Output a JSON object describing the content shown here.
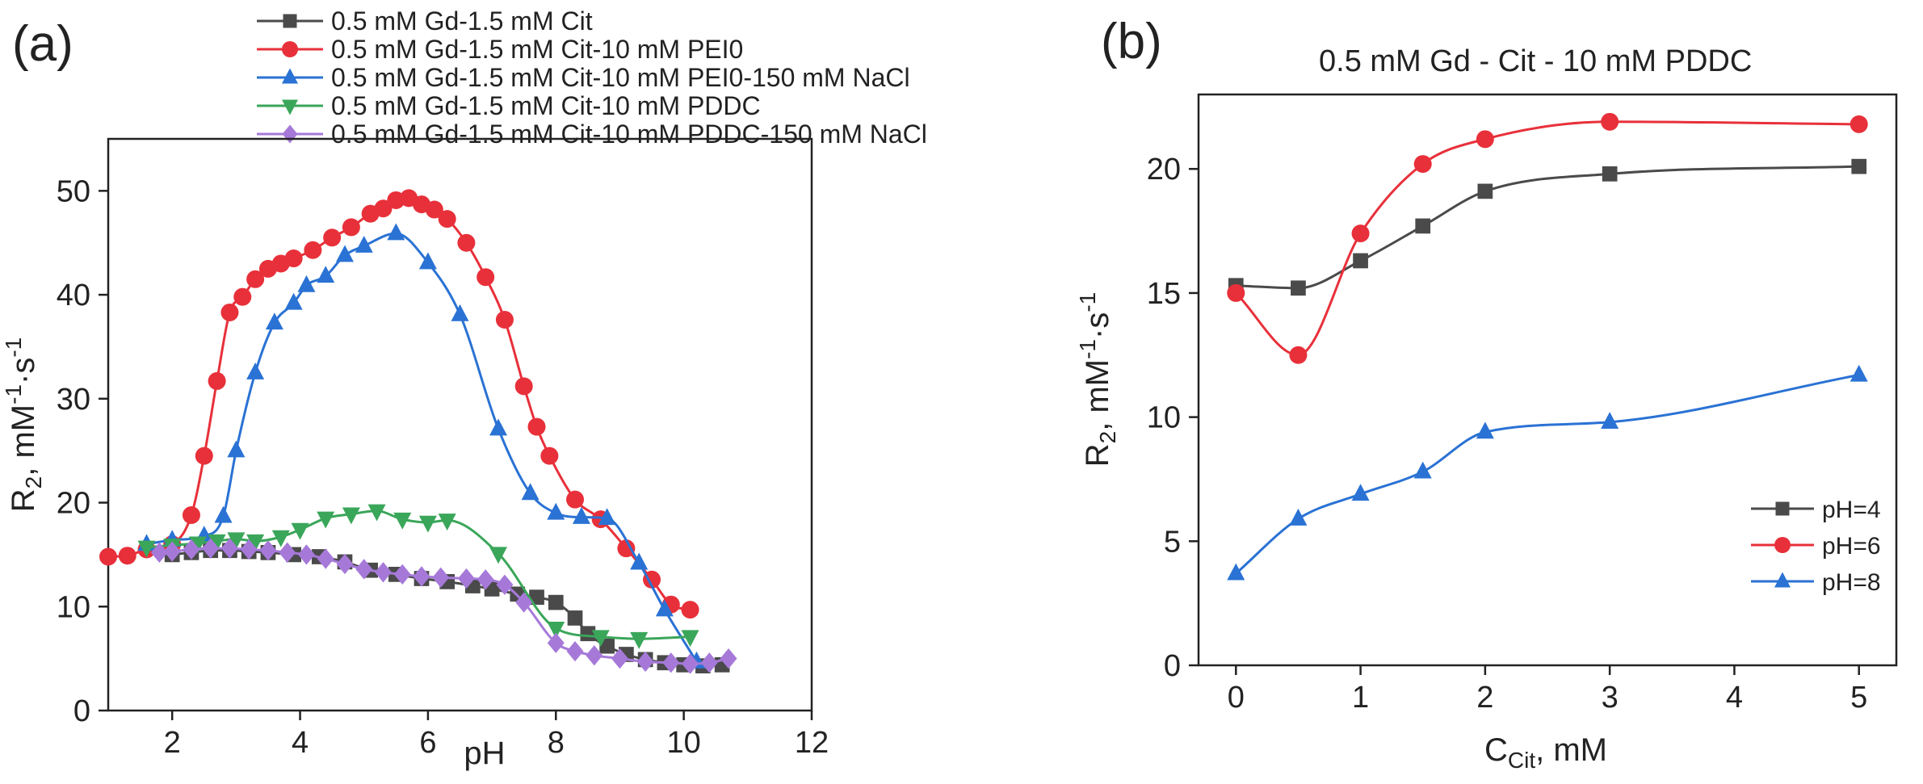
{
  "chart_data": [
    {
      "type": "line",
      "panel_label": "(a)",
      "title": "",
      "xlabel": "pH",
      "ylabel": "R",
      "ylabel_sub": "2",
      "ylabel_unit": ", mM",
      "ylabel_sup1": "-1",
      "ylabel_mid": "·s",
      "ylabel_sup2": "-1",
      "xlim": [
        1,
        12
      ],
      "ylim": [
        0,
        55
      ],
      "x_ticks": [
        "2",
        "4",
        "6",
        "8",
        "10",
        "12"
      ],
      "y_ticks": [
        "0",
        "10",
        "20",
        "30",
        "40",
        "50"
      ],
      "legend_position": "top",
      "series": [
        {
          "name": "0.5 mM Gd-1.5 mM Cit",
          "color": "#4a4a4a",
          "marker": "square",
          "x": [
            2.0,
            2.3,
            2.6,
            2.9,
            3.2,
            3.5,
            3.9,
            4.3,
            4.7,
            5.1,
            5.5,
            5.9,
            6.3,
            6.7,
            7.0,
            7.4,
            7.7,
            8.0,
            8.3,
            8.5,
            8.8,
            9.1,
            9.4,
            9.7,
            10.0,
            10.3,
            10.6
          ],
          "y": [
            15.0,
            15.2,
            15.4,
            15.4,
            15.3,
            15.2,
            15.0,
            14.8,
            14.3,
            13.5,
            13.1,
            12.7,
            12.4,
            12.0,
            11.7,
            11.2,
            10.9,
            10.4,
            8.9,
            7.4,
            6.2,
            5.4,
            4.9,
            4.6,
            4.4,
            4.3,
            4.4
          ]
        },
        {
          "name": "0.5 mM Gd-1.5 mM Cit-10 mM PEI0",
          "color": "#e8303a",
          "marker": "circle",
          "x": [
            1.0,
            1.3,
            1.6,
            2.0,
            2.3,
            2.5,
            2.7,
            2.9,
            3.1,
            3.3,
            3.5,
            3.7,
            3.9,
            4.2,
            4.5,
            4.8,
            5.1,
            5.3,
            5.5,
            5.7,
            5.9,
            6.1,
            6.3,
            6.6,
            6.9,
            7.2,
            7.5,
            7.7,
            7.9,
            8.3,
            8.7,
            9.1,
            9.5,
            9.8,
            10.1
          ],
          "y": [
            14.8,
            14.9,
            15.5,
            16.0,
            18.8,
            24.5,
            31.7,
            38.3,
            39.8,
            41.5,
            42.5,
            43.0,
            43.5,
            44.3,
            45.5,
            46.5,
            47.8,
            48.3,
            49.1,
            49.3,
            48.7,
            48.2,
            47.3,
            45.0,
            41.7,
            37.6,
            31.2,
            27.3,
            24.5,
            20.3,
            18.4,
            15.6,
            12.6,
            10.2,
            9.7
          ]
        },
        {
          "name": "0.5 mM Gd-1.5 mM Cit-10 mM PEI0-150 mM NaCl",
          "color": "#2a72d4",
          "marker": "triangle-up",
          "x": [
            1.6,
            2.0,
            2.5,
            2.8,
            3.0,
            3.3,
            3.6,
            3.9,
            4.1,
            4.4,
            4.7,
            5.0,
            5.5,
            6.0,
            6.5,
            7.1,
            7.6,
            8.0,
            8.4,
            8.8,
            9.3,
            9.7,
            10.2
          ],
          "y": [
            16.0,
            16.4,
            16.8,
            18.7,
            25.0,
            32.5,
            37.3,
            39.2,
            40.9,
            41.8,
            43.8,
            44.7,
            45.9,
            43.1,
            38.1,
            27.1,
            20.9,
            19.0,
            18.6,
            18.5,
            14.2,
            9.7,
            4.7
          ]
        },
        {
          "name": "0.5 mM Gd-1.5 mM Cit-10 mM PDDC",
          "color": "#3aa65a",
          "marker": "triangle-down",
          "x": [
            1.6,
            2.0,
            2.4,
            2.7,
            3.0,
            3.3,
            3.7,
            4.0,
            4.4,
            4.8,
            5.2,
            5.6,
            6.0,
            6.3,
            7.1,
            8.0,
            8.7,
            9.3,
            10.1
          ],
          "y": [
            15.7,
            15.9,
            16.1,
            16.3,
            16.5,
            16.3,
            16.7,
            17.4,
            18.5,
            18.9,
            19.2,
            18.4,
            18.1,
            18.3,
            15.1,
            7.9,
            7.1,
            6.9,
            7.1
          ]
        },
        {
          "name": "0.5 mM Gd-1.5 mM Cit-10 mM PDDC-150 mM NaCl",
          "color": "#a679d9",
          "marker": "diamond",
          "x": [
            1.8,
            2.0,
            2.3,
            2.6,
            2.9,
            3.2,
            3.5,
            3.8,
            4.1,
            4.4,
            4.7,
            5.0,
            5.3,
            5.6,
            5.9,
            6.2,
            6.6,
            6.9,
            7.2,
            7.5,
            8.0,
            8.3,
            8.6,
            9.0,
            9.4,
            9.8,
            10.1,
            10.4,
            10.7
          ],
          "y": [
            15.2,
            15.3,
            15.5,
            15.6,
            15.6,
            15.5,
            15.4,
            15.2,
            15.0,
            14.6,
            14.1,
            13.6,
            13.3,
            13.1,
            12.9,
            12.8,
            12.7,
            12.6,
            12.1,
            10.4,
            6.5,
            5.7,
            5.3,
            5.0,
            4.7,
            4.6,
            4.5,
            4.6,
            5.0
          ]
        }
      ]
    },
    {
      "type": "line",
      "panel_label": "(b)",
      "title": "0.5 mM Gd - Cit - 10 mM PDDC",
      "xlabel": "C",
      "xlabel_sub": "Cit",
      "xlabel_unit": ", mM",
      "ylabel": "R",
      "ylabel_sub": "2",
      "ylabel_unit": ", mM",
      "ylabel_sup1": "-1",
      "ylabel_mid": "·s",
      "ylabel_sup2": "-1",
      "xlim": [
        -0.3,
        5.3
      ],
      "ylim": [
        0,
        23
      ],
      "x_ticks": [
        "0",
        "1",
        "2",
        "3",
        "4",
        "5"
      ],
      "y_ticks": [
        "0",
        "5",
        "10",
        "15",
        "20"
      ],
      "legend_position": "bottom-right",
      "series": [
        {
          "name": "pH=4",
          "color": "#4a4a4a",
          "marker": "square",
          "x": [
            0,
            0.5,
            1,
            1.5,
            2,
            3,
            5
          ],
          "y": [
            15.3,
            15.2,
            16.3,
            17.7,
            19.1,
            19.8,
            20.1
          ]
        },
        {
          "name": "pH=6",
          "color": "#e8303a",
          "marker": "circle",
          "x": [
            0,
            0.5,
            1,
            1.5,
            2,
            3,
            5
          ],
          "y": [
            15.0,
            12.5,
            17.4,
            20.2,
            21.2,
            21.9,
            21.8
          ]
        },
        {
          "name": "pH=8",
          "color": "#2a72d4",
          "marker": "triangle-up",
          "x": [
            0,
            0.5,
            1,
            1.5,
            2,
            3,
            5
          ],
          "y": [
            3.7,
            5.9,
            6.9,
            7.8,
            9.4,
            9.8,
            11.7
          ]
        }
      ]
    }
  ]
}
